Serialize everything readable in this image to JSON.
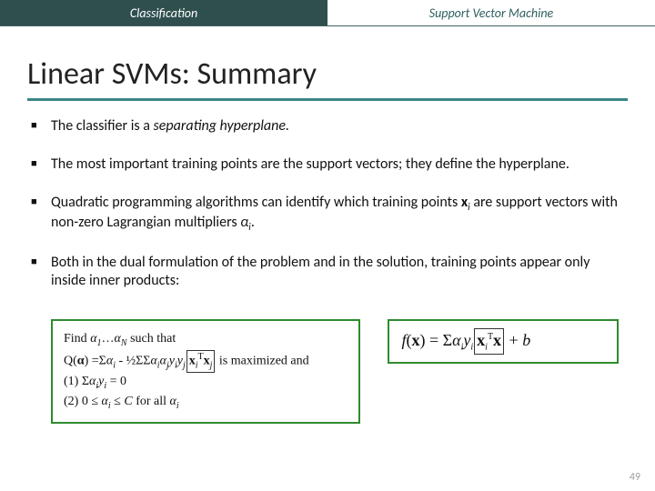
{
  "header": {
    "left": "Classification",
    "right": "Support Vector Machine"
  },
  "title": "Linear SVMs:  Summary",
  "bullets": {
    "b1_pre": "The classifier is a ",
    "b1_em": "separating hyperplane.",
    "b2": "The most important training points are the support vectors; they define the hyperplane.",
    "b3_pre": "Quadratic programming algorithms can identify which training points ",
    "b3_x": "x",
    "b3_i": "i",
    "b3_mid": " are support vectors with non-zero Lagrangian multipliers ",
    "b3_a": "α",
    "b3_end": ".",
    "b4": "Both in the dual formulation of the problem and in the solution, training points appear only inside inner products:"
  },
  "leftbox": {
    "l1_a": "Find ",
    "l1_b": "α",
    "l1_c": "1",
    "l1_d": "…",
    "l1_e": "α",
    "l1_f": "N",
    "l1_g": " such that",
    "l2_a": "Q(",
    "l2_b": "α",
    "l2_c": ") =Σ",
    "l2_d": "α",
    "l2_e": "i",
    "l2_f": " - ½ΣΣ",
    "l2_g": "α",
    "l2_h": "i",
    "l2_i": "α",
    "l2_j": "j",
    "l2_k": "y",
    "l2_l": "i",
    "l2_m": "y",
    "l2_n": "j",
    "l2_box_xi": "x",
    "l2_box_i": "i",
    "l2_box_T": "T",
    "l2_box_xj": "x",
    "l2_box_j": "j",
    "l2_end": " is maximized and",
    "l3": "(1)  Σ",
    "l3_a": "α",
    "l3_i": "i",
    "l3_y": "y",
    "l3_end": " = 0",
    "l4_a": "(2)  0 ≤ ",
    "l4_b": "α",
    "l4_c": "i",
    "l4_d": " ≤ ",
    "l4_e": "C",
    "l4_f": " for all ",
    "l4_g": "α",
    "l4_h": "i"
  },
  "rightbox": {
    "f": "f",
    "x": "x",
    "eq": ") = Σ",
    "a": "α",
    "i": "i",
    "y": "y",
    "xi": "x",
    "T": "T",
    "xplain": "x",
    "plusb": " + ",
    "b": "b"
  },
  "pagenum": "49",
  "colors": {
    "header_bg": "#2f4f4f",
    "accent": "#3b8686",
    "box_border": "#2e8b2e"
  }
}
